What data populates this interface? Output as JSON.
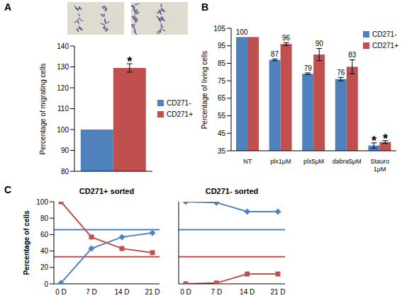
{
  "chart_data": [
    {
      "panel": "A",
      "type": "bar",
      "ylabel": "Percentage of migrating cells",
      "categories": [
        null
      ],
      "series": [
        {
          "name": "CD271-",
          "color": "#4f81bd",
          "values": [
            100
          ]
        },
        {
          "name": "CD271+",
          "color": "#c0504d",
          "values": [
            129.5
          ],
          "errors": [
            2
          ]
        }
      ],
      "ylim": [
        80,
        140
      ],
      "yticks": [
        80,
        90,
        100,
        110,
        120,
        130,
        140
      ],
      "grid": false,
      "legend": "right",
      "annotations": [
        {
          "text": "*",
          "series": "CD271+",
          "index": 0
        }
      ]
    },
    {
      "panel": "B",
      "type": "bar",
      "ylabel": "Percentage of living cells",
      "categories": [
        "NT",
        "plx1μM",
        "plx5μM",
        "dabra5μM",
        "Stauro 1μM"
      ],
      "series": [
        {
          "name": "CD271-",
          "color": "#4f81bd",
          "values": [
            100,
            87,
            79,
            76,
            38
          ],
          "errors": [
            0,
            0.5,
            0.5,
            1,
            1.5
          ],
          "value_labels": [
            "100",
            "87",
            "79",
            "76",
            null
          ]
        },
        {
          "name": "CD271+",
          "color": "#c0504d",
          "values": [
            100,
            96,
            90,
            83,
            40
          ],
          "errors": [
            0,
            0.8,
            3.5,
            4,
            0.8
          ],
          "value_labels": [
            null,
            "96",
            "90",
            "83",
            null
          ]
        }
      ],
      "ylim": [
        35,
        105
      ],
      "yticks": [
        35,
        45,
        55,
        65,
        75,
        85,
        95,
        105
      ],
      "grid": false,
      "legend": "top-right",
      "data_labels": true,
      "annotations": [
        {
          "text": "*",
          "series": "CD271-",
          "index": 4
        },
        {
          "text": "*",
          "series": "CD271+",
          "index": 4
        }
      ]
    },
    {
      "panel": "C",
      "type": "line",
      "title": "CD271+ sorted",
      "ylabel": "Percentage of cells",
      "categories": [
        "0 D",
        "7 D",
        "14 D",
        "21 D"
      ],
      "series": [
        {
          "color": "#4f81bd",
          "marker": "diamond",
          "values": [
            1,
            43,
            57,
            62
          ]
        },
        {
          "color": "#c0504d",
          "marker": "square",
          "values": [
            100,
            57,
            43,
            38
          ]
        }
      ],
      "reference_lines": [
        {
          "value": 66,
          "color": "#4f81bd"
        },
        {
          "value": 33,
          "color": "#c0504d"
        }
      ],
      "ylim": [
        0,
        100
      ],
      "yticks": [
        0,
        20,
        40,
        60,
        80,
        100
      ],
      "grid": false
    },
    {
      "type": "line",
      "title": "CD271- sorted",
      "categories": [
        "0 D",
        "7 D",
        "14 D",
        "21 D"
      ],
      "series": [
        {
          "color": "#4f81bd",
          "marker": "diamond",
          "values": [
            100,
            99,
            88,
            88
          ]
        },
        {
          "color": "#c0504d",
          "marker": "square",
          "values": [
            0,
            1,
            12,
            12
          ]
        }
      ],
      "reference_lines": [
        {
          "value": 66,
          "color": "#4f81bd"
        },
        {
          "value": 33,
          "color": "#c0504d"
        }
      ],
      "ylim": [
        0,
        100
      ],
      "grid": false,
      "tick_labels": "x"
    }
  ]
}
